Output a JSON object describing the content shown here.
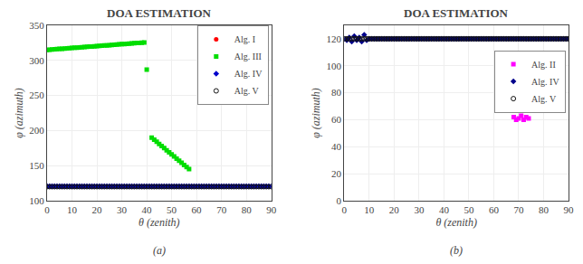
{
  "chart_data": [
    {
      "type": "scatter",
      "title": "DOA ESTIMATION",
      "xlabel": "θ (zenith)",
      "ylabel": "φ (azimuth)",
      "annotations": [
        "(a)"
      ],
      "xlim": [
        0,
        90
      ],
      "ylim": [
        100,
        350
      ],
      "xticks": [
        0,
        10,
        20,
        30,
        40,
        50,
        60,
        70,
        80,
        90
      ],
      "yticks": [
        100,
        150,
        200,
        250,
        300,
        350
      ],
      "grid": true,
      "legend": "upper right",
      "series": [
        {
          "name": "Alg. I",
          "color": "#ff0000",
          "marker": "circle",
          "x": [],
          "values": []
        },
        {
          "name": "Alg. III",
          "color": "#00dd00",
          "marker": "square",
          "x": [
            0,
            1,
            2,
            3,
            4,
            5,
            6,
            7,
            8,
            9,
            10,
            11,
            12,
            13,
            14,
            15,
            16,
            17,
            18,
            19,
            20,
            21,
            22,
            23,
            24,
            25,
            26,
            27,
            28,
            29,
            30,
            31,
            32,
            33,
            34,
            35,
            36,
            37,
            38,
            39,
            40,
            42,
            43,
            44,
            45,
            46,
            47,
            48,
            49,
            50,
            51,
            52,
            53,
            54,
            55,
            56,
            57
          ],
          "values": [
            315,
            315.27,
            315.54,
            315.81,
            316.08,
            316.35,
            316.62,
            316.89,
            317.16,
            317.43,
            317.7,
            317.97,
            318.24,
            318.51,
            318.78,
            319.05,
            319.32,
            319.59,
            319.86,
            320.13,
            320.4,
            320.67,
            320.94,
            321.21,
            321.48,
            321.75,
            322.02,
            322.29,
            322.56,
            322.83,
            323.1,
            323.37,
            323.64,
            323.91,
            324.18,
            324.45,
            324.72,
            324.99,
            325.26,
            325.53,
            287,
            190,
            187,
            184,
            181,
            178,
            175,
            172,
            169,
            166,
            163,
            160,
            157,
            154,
            151,
            148,
            145
          ]
        },
        {
          "name": "Alg. IV",
          "color": "#0000cc",
          "marker": "diamond",
          "x": [
            0,
            1,
            2,
            3,
            4,
            5,
            6,
            7,
            8,
            9,
            10,
            11,
            12,
            13,
            14,
            15,
            16,
            17,
            18,
            19,
            20,
            21,
            22,
            23,
            24,
            25,
            26,
            27,
            28,
            29,
            30,
            31,
            32,
            33,
            34,
            35,
            36,
            37,
            38,
            39,
            40,
            41,
            42,
            43,
            44,
            45,
            46,
            47,
            48,
            49,
            50,
            51,
            52,
            53,
            54,
            55,
            56,
            57,
            58,
            59,
            60,
            61,
            62,
            63,
            64,
            65,
            66,
            67,
            68,
            69,
            70,
            71,
            72,
            73,
            74,
            75,
            76,
            77,
            78,
            79,
            80,
            81,
            82,
            83,
            84,
            85,
            86,
            87,
            88,
            89,
            90
          ],
          "values": [
            120.5,
            120.5,
            120.5,
            120.5,
            120.5,
            120.5,
            120.5,
            120.5,
            120.5,
            120.5,
            120.5,
            120.5,
            120.5,
            120.5,
            120.5,
            120.5,
            120.5,
            120.5,
            120.5,
            120.5,
            120.5,
            120.5,
            120.5,
            120.5,
            120.5,
            120.5,
            120.5,
            120.5,
            120.5,
            120.5,
            120.5,
            120.5,
            120.5,
            120.5,
            120.5,
            120.5,
            120.5,
            120.5,
            120.5,
            120.5,
            120.5,
            120.5,
            120.5,
            120.5,
            120.5,
            120.5,
            120.5,
            120.5,
            120.5,
            120.5,
            120.5,
            120.5,
            120.5,
            120.5,
            120.5,
            120.5,
            120.5,
            120.5,
            120.5,
            120.5,
            120.5,
            120.5,
            120.5,
            120.5,
            120.5,
            120.5,
            120.5,
            120.5,
            120.5,
            120.5,
            120.5,
            120.5,
            120.5,
            120.5,
            120.5,
            120.5,
            120.5,
            120.5,
            120.5,
            120.5,
            120.5,
            120.5,
            120.5,
            120.5,
            120.5,
            120.5,
            120.5,
            120.5,
            120.5,
            120.5,
            120.5
          ]
        },
        {
          "name": "Alg. V",
          "color": "#111111",
          "marker": "circle-open",
          "x": [
            0,
            1,
            2,
            3,
            4,
            5,
            6,
            7,
            8,
            9,
            10,
            11,
            12,
            13,
            14,
            15,
            16,
            17,
            18,
            19,
            20,
            21,
            22,
            23,
            24,
            25,
            26,
            27,
            28,
            29,
            30,
            31,
            32,
            33,
            34,
            35,
            36,
            37,
            38,
            39,
            40,
            41,
            42,
            43,
            44,
            45,
            46,
            47,
            48,
            49,
            50,
            51,
            52,
            53,
            54,
            55,
            56,
            57,
            58,
            59,
            60,
            61,
            62,
            63,
            64,
            65,
            66,
            67,
            68,
            69,
            70,
            71,
            72,
            73,
            74,
            75,
            76,
            77,
            78,
            79,
            80,
            81,
            82,
            83,
            84,
            85,
            86,
            87,
            88,
            89,
            90
          ],
          "values": [
            120,
            120,
            120,
            120,
            120,
            120,
            120,
            120,
            120,
            120,
            120,
            120,
            120,
            120,
            120,
            120,
            120,
            120,
            120,
            120,
            120,
            120,
            120,
            120,
            120,
            120,
            120,
            120,
            120,
            120,
            120,
            120,
            120,
            120,
            120,
            120,
            120,
            120,
            120,
            120,
            120,
            120,
            120,
            120,
            120,
            120,
            120,
            120,
            120,
            120,
            120,
            120,
            120,
            120,
            120,
            120,
            120,
            120,
            120,
            120,
            120,
            120,
            120,
            120,
            120,
            120,
            120,
            120,
            120,
            120,
            120,
            120,
            120,
            120,
            120,
            120,
            120,
            120,
            120,
            120,
            120,
            120,
            120,
            120,
            120,
            120,
            120,
            120,
            120,
            120,
            120
          ]
        }
      ]
    },
    {
      "type": "scatter",
      "title": "DOA ESTIMATION",
      "xlabel": "θ (zenith)",
      "ylabel": "φ (azimuth)",
      "annotations": [
        "(b)"
      ],
      "xlim": [
        0,
        90
      ],
      "ylim": [
        0,
        130
      ],
      "xticks": [
        0,
        10,
        20,
        30,
        40,
        50,
        60,
        70,
        80,
        90
      ],
      "yticks": [
        0,
        20,
        40,
        60,
        80,
        100,
        120
      ],
      "grid": true,
      "legend": "right",
      "series": [
        {
          "name": "Alg. II",
          "color": "#ff00ff",
          "marker": "square",
          "x": [
            68,
            69,
            70,
            71,
            72,
            73,
            74
          ],
          "values": [
            62,
            60,
            61,
            63,
            60,
            62,
            61
          ]
        },
        {
          "name": "Alg. IV",
          "color": "#00008b",
          "marker": "diamond",
          "x": [
            0,
            1,
            2,
            3,
            4,
            5,
            6,
            7,
            8,
            9,
            10,
            11,
            12,
            13,
            14,
            15,
            16,
            17,
            18,
            19,
            20,
            21,
            22,
            23,
            24,
            25,
            26,
            27,
            28,
            29,
            30,
            31,
            32,
            33,
            34,
            35,
            36,
            37,
            38,
            39,
            40,
            41,
            42,
            43,
            44,
            45,
            46,
            47,
            48,
            49,
            50,
            51,
            52,
            53,
            54,
            55,
            56,
            57,
            58,
            59,
            60,
            61,
            62,
            63,
            64,
            65,
            66,
            67,
            68,
            69,
            70,
            71,
            72,
            73,
            74,
            75,
            76,
            77,
            78,
            79,
            80,
            81,
            82,
            83,
            84,
            85,
            86,
            87,
            88,
            89,
            90
          ],
          "values": [
            120,
            119,
            121,
            118,
            122,
            119,
            121,
            118,
            123,
            119,
            120,
            120,
            120,
            120,
            120,
            120,
            120,
            120,
            120,
            120,
            120,
            120,
            120,
            120,
            120,
            120,
            120,
            120,
            120,
            120,
            120,
            120,
            120,
            120,
            120,
            120,
            120,
            120,
            120,
            120,
            120,
            120,
            120,
            120,
            120,
            120,
            120,
            120,
            120,
            120,
            120,
            120,
            120,
            120,
            120,
            120,
            120,
            120,
            120,
            120,
            120,
            120,
            120,
            120,
            120,
            120,
            120,
            120,
            120,
            120,
            120,
            120,
            120,
            120,
            120,
            120,
            120,
            120,
            120,
            120,
            120,
            120,
            120,
            120,
            120,
            120,
            120,
            120,
            120,
            120,
            120
          ]
        },
        {
          "name": "Alg. V",
          "color": "#111111",
          "marker": "circle-open",
          "x": [
            0,
            1,
            2,
            3,
            4,
            5,
            6,
            7,
            8,
            9,
            10,
            11,
            12,
            13,
            14,
            15,
            16,
            17,
            18,
            19,
            20,
            21,
            22,
            23,
            24,
            25,
            26,
            27,
            28,
            29,
            30,
            31,
            32,
            33,
            34,
            35,
            36,
            37,
            38,
            39,
            40,
            41,
            42,
            43,
            44,
            45,
            46,
            47,
            48,
            49,
            50,
            51,
            52,
            53,
            54,
            55,
            56,
            57,
            58,
            59,
            60,
            61,
            62,
            63,
            64,
            65,
            66,
            67,
            68,
            69,
            70,
            71,
            72,
            73,
            74,
            75,
            76,
            77,
            78,
            79,
            80,
            81,
            82,
            83,
            84,
            85,
            86,
            87,
            88,
            89,
            90
          ],
          "values": [
            120,
            120,
            120,
            120,
            120,
            120,
            120,
            120,
            120,
            120,
            120,
            120,
            120,
            120,
            120,
            120,
            120,
            120,
            120,
            120,
            120,
            120,
            120,
            120,
            120,
            120,
            120,
            120,
            120,
            120,
            120,
            120,
            120,
            120,
            120,
            120,
            120,
            120,
            120,
            120,
            120,
            120,
            120,
            120,
            120,
            120,
            120,
            120,
            120,
            120,
            120,
            120,
            120,
            120,
            120,
            120,
            120,
            120,
            120,
            120,
            120,
            120,
            120,
            120,
            120,
            120,
            120,
            120,
            120,
            120,
            120,
            120,
            120,
            120,
            120,
            120,
            120,
            120,
            120,
            120,
            120,
            120,
            120,
            120,
            120,
            120,
            120,
            120,
            120,
            120,
            120
          ]
        }
      ]
    }
  ]
}
